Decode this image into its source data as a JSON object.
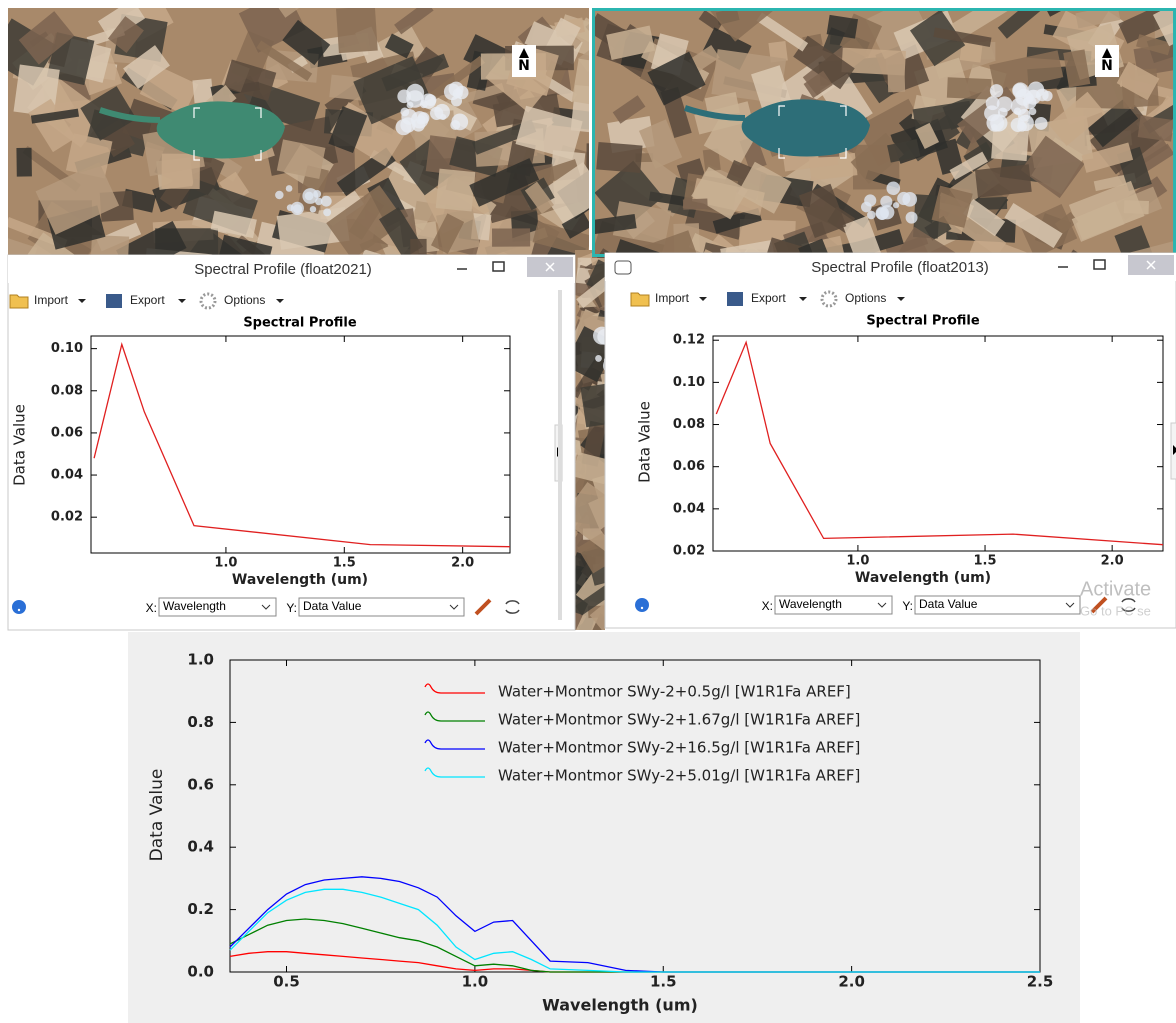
{
  "windows": [
    {
      "title": "Spectral Profile (float2021)",
      "menu": [
        "Import",
        "Export",
        "Options"
      ],
      "x_prefix": "X:",
      "x_axis": "Wavelength",
      "y_prefix": "Y:",
      "y_axis": "Data Value"
    },
    {
      "title": "Spectral Profile (float2013)",
      "menu": [
        "Import",
        "Export",
        "Options"
      ],
      "x_prefix": "X:",
      "x_axis": "Wavelength",
      "y_prefix": "Y:",
      "y_axis": "Data Value"
    }
  ],
  "north_label": "N",
  "watermark": [
    "Activate",
    "Go to PC se"
  ],
  "chart_data": [
    {
      "type": "line",
      "title": "Spectral Profile",
      "x_label": "Wavelength (um)",
      "y_label": "Data Value",
      "color": "#e02020",
      "x": [
        0.443,
        0.56,
        0.655,
        0.865,
        1.61,
        2.2
      ],
      "values": [
        0.048,
        0.102,
        0.07,
        0.016,
        0.007,
        0.006
      ],
      "xlim": [
        0.43,
        2.2
      ],
      "ylim": [
        0.003,
        0.106
      ],
      "xticks": [
        {
          "value": 1.0,
          "label": "1.0"
        },
        1.5,
        {
          "value": 2.0,
          "label": "2.0"
        }
      ],
      "yticks": [
        0.02,
        0.04,
        0.06,
        0.08,
        {
          "value": 0.1,
          "label": "0.10"
        }
      ],
      "grid": false
    },
    {
      "type": "line",
      "title": "Spectral Profile",
      "x_label": "Wavelength (um)",
      "y_label": "Data Value",
      "color": "#e02020",
      "x": [
        0.443,
        0.56,
        0.655,
        0.865,
        1.61,
        2.2
      ],
      "values": [
        0.085,
        0.119,
        0.071,
        0.026,
        0.028,
        0.023
      ],
      "xlim": [
        0.43,
        2.2
      ],
      "ylim": [
        0.02,
        0.122
      ],
      "xticks": [
        {
          "value": 1.0,
          "label": "1.0"
        },
        1.5,
        {
          "value": 2.0,
          "label": "2.0"
        }
      ],
      "yticks": [
        0.02,
        0.04,
        0.06,
        0.08,
        {
          "value": 0.1,
          "label": "0.10"
        },
        0.12
      ],
      "grid": false
    },
    {
      "type": "line",
      "x_label": "Wavelength (um)",
      "y_label": "Data Value",
      "legend": "top-right",
      "grid": false,
      "x": [
        0.35,
        0.4,
        0.45,
        0.5,
        0.55,
        0.6,
        0.65,
        0.7,
        0.75,
        0.8,
        0.85,
        0.9,
        0.95,
        1.0,
        1.05,
        1.1,
        1.15,
        1.2,
        1.3,
        1.4,
        1.5,
        2.0,
        2.5
      ],
      "series": [
        {
          "name": "Water+Montmor SWy-2+0.5g/l [W1R1Fa AREF]",
          "color": "#ff0000",
          "values": [
            0.05,
            0.06,
            0.065,
            0.065,
            0.06,
            0.055,
            0.05,
            0.045,
            0.04,
            0.035,
            0.03,
            0.02,
            0.01,
            0.005,
            0.01,
            0.01,
            0.005,
            0,
            0,
            0,
            0,
            0,
            0
          ]
        },
        {
          "name": "Water+Montmor SWy-2+1.67g/l [W1R1Fa AREF]",
          "color": "#008000",
          "values": [
            0.09,
            0.12,
            0.15,
            0.165,
            0.17,
            0.165,
            0.155,
            0.14,
            0.125,
            0.11,
            0.1,
            0.08,
            0.05,
            0.02,
            0.025,
            0.02,
            0.005,
            0,
            0,
            0,
            0,
            0,
            0
          ]
        },
        {
          "name": "Water+Montmor SWy-2+16.5g/l [W1R1Fa AREF]",
          "color": "#0000ff",
          "values": [
            0.08,
            0.14,
            0.2,
            0.25,
            0.28,
            0.295,
            0.3,
            0.305,
            0.3,
            0.29,
            0.27,
            0.24,
            0.18,
            0.13,
            0.16,
            0.165,
            0.1,
            0.035,
            0.03,
            0.005,
            0,
            0,
            0
          ]
        },
        {
          "name": "Water+Montmor SWy-2+5.01g/l [W1R1Fa AREF]",
          "color": "#00e5ff",
          "values": [
            0.07,
            0.13,
            0.19,
            0.23,
            0.255,
            0.265,
            0.265,
            0.255,
            0.24,
            0.22,
            0.2,
            0.15,
            0.08,
            0.04,
            0.06,
            0.065,
            0.04,
            0.01,
            0.005,
            0,
            0,
            0,
            0
          ]
        }
      ],
      "xlim": [
        0.35,
        2.5
      ],
      "ylim": [
        0,
        1.0
      ],
      "xticks": [
        0.5,
        {
          "value": 1.0,
          "label": "1.0"
        },
        1.5,
        {
          "value": 2.0,
          "label": "2.0"
        },
        2.5
      ],
      "yticks": [
        {
          "value": 0,
          "label": "0.0"
        },
        0.2,
        0.4,
        0.6,
        0.8,
        {
          "value": 1.0,
          "label": "1.0"
        }
      ]
    }
  ]
}
